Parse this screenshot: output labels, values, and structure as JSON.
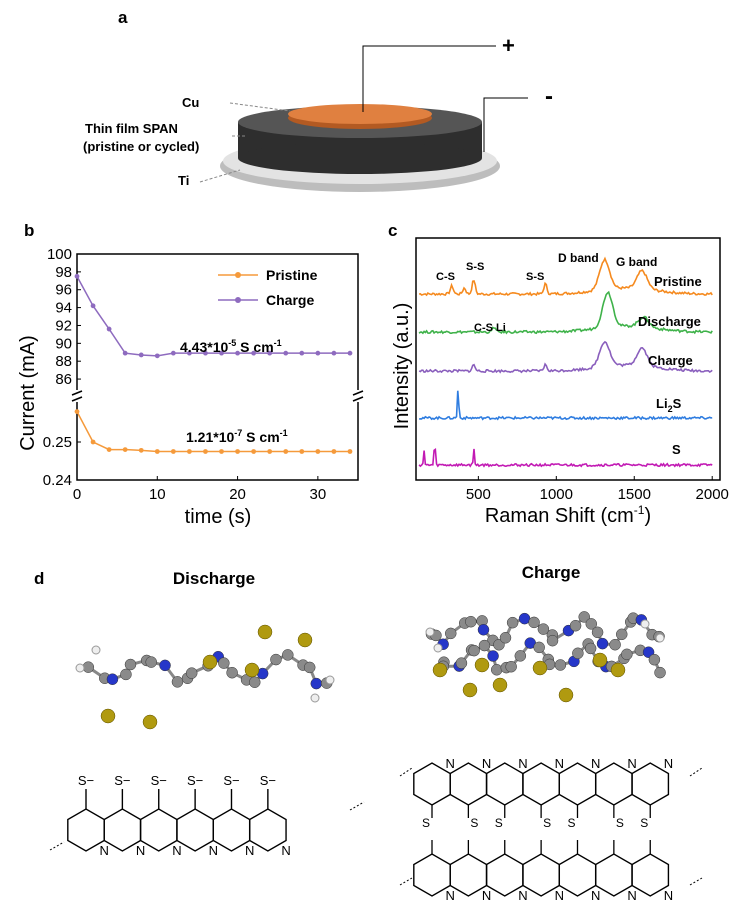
{
  "panel_a": {
    "letter": "a",
    "plus": "+",
    "minus": "-",
    "labels": {
      "cu": "Cu",
      "span1": "Thin film SPAN",
      "span2": "(pristine or cycled)",
      "ti": "Ti"
    },
    "colors": {
      "cu": "#d9733a",
      "span": "#3a3a3a",
      "ti": "#c8c8c8"
    }
  },
  "panel_b": {
    "letter": "b",
    "sup_minus5": "-5",
    "sup_minus7": "-7",
    "sup_minus1": "-1"
  },
  "panel_c": {
    "letter": "c",
    "sub2": "2"
  },
  "panel_d": {
    "letter": "d",
    "title_left": "Discharge",
    "title_right": "Charge",
    "n_label": "N",
    "s_label": "S",
    "s_minus": "S",
    "minus_sign": "−"
  },
  "chart_data": [
    {
      "type": "line",
      "panel": "b",
      "xlabel": "time (s)",
      "ylabel": "Current (mA)",
      "x_ticks": [
        "0",
        "10",
        "20",
        "30"
      ],
      "y_ticks_upper": [
        "86",
        "88",
        "90",
        "92",
        "94",
        "96",
        "98",
        "100"
      ],
      "y_ticks_lower": [
        "0.24",
        "0.25"
      ],
      "xlim": [
        0,
        35
      ],
      "ylim_upper": [
        85,
        100
      ],
      "ylim_lower": [
        0.24,
        0.26
      ],
      "broken_axis": true,
      "legend_position": "top-right",
      "annotations": [
        {
          "label": "4.43*10",
          "sup": "-5",
          "unit": " S cm",
          "unit_sup": "-1"
        },
        {
          "label": "1.21*10",
          "sup": "-7",
          "unit": " S cm",
          "unit_sup": "-1"
        }
      ],
      "series": [
        {
          "name": "Pristine",
          "color": "#f59a3b",
          "axis": "lower",
          "x": [
            0,
            2,
            4,
            6,
            8,
            10,
            12,
            14,
            16,
            18,
            20,
            22,
            24,
            26,
            28,
            30,
            32,
            34
          ],
          "values": [
            0.258,
            0.25,
            0.248,
            0.248,
            0.2478,
            0.2475,
            0.2475,
            0.2475,
            0.2475,
            0.2475,
            0.2475,
            0.2475,
            0.2475,
            0.2475,
            0.2475,
            0.2475,
            0.2475,
            0.2475
          ]
        },
        {
          "name": "Charge",
          "color": "#8e6bbf",
          "axis": "upper",
          "x": [
            0,
            2,
            4,
            6,
            8,
            10,
            12,
            14,
            16,
            18,
            20,
            22,
            24,
            26,
            28,
            30,
            32,
            34
          ],
          "values": [
            97.5,
            94.2,
            91.6,
            88.9,
            88.7,
            88.6,
            88.9,
            88.9,
            88.9,
            88.9,
            88.9,
            88.9,
            88.9,
            88.9,
            88.9,
            88.9,
            88.9,
            88.9
          ]
        }
      ]
    },
    {
      "type": "line",
      "panel": "c",
      "xlabel": "Raman Shift (cm",
      "xlabel_sup": "-1",
      "xlabel_end": ")",
      "ylabel": "Intensity (a.u.)",
      "x_ticks": [
        "500",
        "1000",
        "1500",
        "2000"
      ],
      "xlim": [
        100,
        2050
      ],
      "series": [
        {
          "name": "Pristine",
          "color": "#f58a1f",
          "peaks": [
            [
              330,
              8
            ],
            [
              410,
              6
            ],
            [
              470,
              14
            ],
            [
              930,
              10
            ],
            [
              1310,
              30
            ],
            [
              1550,
              18
            ]
          ],
          "baseline": 0
        },
        {
          "name": "Discharge",
          "color": "#3fb24a",
          "peaks": [
            [
              600,
              5
            ],
            [
              1330,
              35
            ],
            [
              1560,
              10
            ]
          ],
          "baseline": 0
        },
        {
          "name": "Charge",
          "color": "#8a5fbd",
          "peaks": [
            [
              470,
              6
            ],
            [
              930,
              6
            ],
            [
              1310,
              25
            ],
            [
              1550,
              18
            ]
          ],
          "baseline": 0
        },
        {
          "name": "Li2S",
          "color": "#2f7de0",
          "peaks": [
            [
              370,
              30
            ]
          ],
          "baseline": 0
        },
        {
          "name": "S",
          "color": "#c21ab4",
          "peaks": [
            [
              150,
              18
            ],
            [
              220,
              40
            ],
            [
              470,
              22
            ]
          ],
          "baseline": 0
        }
      ],
      "annotations": [
        "C-S",
        "S-S",
        "S-S",
        "D band",
        "G band",
        "C-S Li"
      ],
      "series_labels": [
        "Pristine",
        "Discharge",
        "Charge",
        "Li",
        "S"
      ]
    }
  ]
}
